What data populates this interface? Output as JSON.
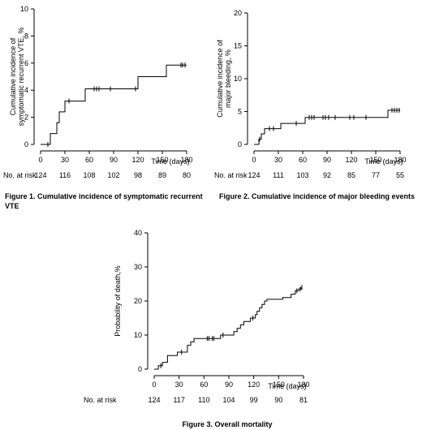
{
  "chart_data": [
    {
      "type": "line",
      "step": true,
      "caption": "Figure 1. Cumulative incidence of symptomatic recurrent VTE",
      "ylabel": "Cumulative incidence of symptomatic recurrent VTE, %",
      "ylabel_lines": [
        "Cumulative incidence of",
        "symptomatic recurrent VTE, %"
      ],
      "xlabel": "Time (days)",
      "xlim": [
        0,
        180
      ],
      "ylim": [
        0,
        10
      ],
      "xticks": [
        "0",
        "30",
        "60",
        "90",
        "120",
        "150",
        "180"
      ],
      "yticks": [
        "0",
        "2",
        "4",
        "6",
        "8",
        "10"
      ],
      "series": [
        {
          "x": [
            0,
            10,
            12,
            18,
            20,
            23,
            25,
            30,
            55,
            120,
            155,
            180
          ],
          "y": [
            0,
            0,
            0.8,
            0.8,
            1.6,
            2.4,
            2.4,
            3.2,
            4.1,
            5.0,
            5.85,
            5.85
          ]
        }
      ],
      "censor_marks": [
        {
          "x": 9,
          "y": 0
        },
        {
          "x": 35,
          "y": 3.2
        },
        {
          "x": 66,
          "y": 4.1
        },
        {
          "x": 69,
          "y": 4.1
        },
        {
          "x": 72,
          "y": 4.1
        },
        {
          "x": 86,
          "y": 4.1
        },
        {
          "x": 117,
          "y": 4.1
        },
        {
          "x": 173,
          "y": 5.85
        },
        {
          "x": 175,
          "y": 5.85
        },
        {
          "x": 178,
          "y": 5.85
        }
      ],
      "risk_label": "No. at risk",
      "at_risk": [
        "124",
        "116",
        "108",
        "102",
        "98",
        "89",
        "80"
      ]
    },
    {
      "type": "line",
      "step": true,
      "caption": "Figure 2. Cumulative incidence of major bleeding events",
      "ylabel": "Cumulative incidence of major bleeding, %",
      "ylabel_lines": [
        "Cumulative incidence of",
        "major bleeding, %"
      ],
      "xlabel": "Time (days)",
      "xlim": [
        0,
        180
      ],
      "ylim": [
        0,
        20
      ],
      "xticks": [
        "0",
        "30",
        "60",
        "90",
        "120",
        "150",
        "180"
      ],
      "yticks": [
        "0",
        "5",
        "10",
        "15",
        "20"
      ],
      "series": [
        {
          "x": [
            0,
            6,
            9,
            13,
            33,
            63,
            165,
            180
          ],
          "y": [
            0,
            0.8,
            1.6,
            2.4,
            3.2,
            4.1,
            5.2,
            5.2
          ]
        }
      ],
      "censor_marks": [
        {
          "x": 7,
          "y": 0.8
        },
        {
          "x": 19,
          "y": 2.4
        },
        {
          "x": 24,
          "y": 2.4
        },
        {
          "x": 52,
          "y": 3.2
        },
        {
          "x": 68,
          "y": 4.1
        },
        {
          "x": 71,
          "y": 4.1
        },
        {
          "x": 74,
          "y": 4.1
        },
        {
          "x": 85,
          "y": 4.1
        },
        {
          "x": 88,
          "y": 4.1
        },
        {
          "x": 92,
          "y": 4.1
        },
        {
          "x": 100,
          "y": 4.1
        },
        {
          "x": 118,
          "y": 4.1
        },
        {
          "x": 123,
          "y": 4.1
        },
        {
          "x": 138,
          "y": 4.1
        },
        {
          "x": 170,
          "y": 5.2
        },
        {
          "x": 173,
          "y": 5.2
        },
        {
          "x": 176,
          "y": 5.2
        },
        {
          "x": 179,
          "y": 5.2
        }
      ],
      "risk_label": "No. at risk",
      "at_risk": [
        "124",
        "111",
        "103",
        "92",
        "85",
        "77",
        "55"
      ]
    },
    {
      "type": "line",
      "step": true,
      "caption": "Figure 3. Overall mortality",
      "ylabel": "Probability of death,%",
      "ylabel_lines": [
        "Probability of death,%"
      ],
      "xlabel": "Time (days)",
      "xlim": [
        0,
        180
      ],
      "ylim": [
        0,
        40
      ],
      "xticks": [
        "0",
        "30",
        "60",
        "90",
        "120",
        "150",
        "180"
      ],
      "yticks": [
        "0",
        "10",
        "20",
        "30",
        "40"
      ],
      "series": [
        {
          "x": [
            0,
            5,
            10,
            16,
            28,
            40,
            44,
            48,
            68,
            80,
            90,
            96,
            100,
            104,
            108,
            112,
            116,
            122,
            124,
            127,
            130,
            133,
            136,
            140,
            155,
            165,
            170,
            174,
            177
          ],
          "y": [
            0,
            1,
            2,
            4,
            5,
            7,
            8,
            9,
            9,
            10,
            10,
            11,
            12,
            13,
            14,
            14,
            15,
            16,
            17,
            18,
            19,
            20,
            20.5,
            20.5,
            21,
            22,
            23,
            23.5,
            24
          ]
        }
      ],
      "censor_marks": [
        {
          "x": 8,
          "y": 1
        },
        {
          "x": 33,
          "y": 5
        },
        {
          "x": 64,
          "y": 9
        },
        {
          "x": 66,
          "y": 9
        },
        {
          "x": 70,
          "y": 9
        },
        {
          "x": 72,
          "y": 9
        },
        {
          "x": 83,
          "y": 10
        },
        {
          "x": 119,
          "y": 15
        },
        {
          "x": 172,
          "y": 23
        },
        {
          "x": 176,
          "y": 23.5
        },
        {
          "x": 178,
          "y": 24
        }
      ],
      "risk_label": "No. at risk",
      "at_risk": [
        "124",
        "117",
        "110",
        "104",
        "99",
        "90",
        "81"
      ]
    }
  ]
}
